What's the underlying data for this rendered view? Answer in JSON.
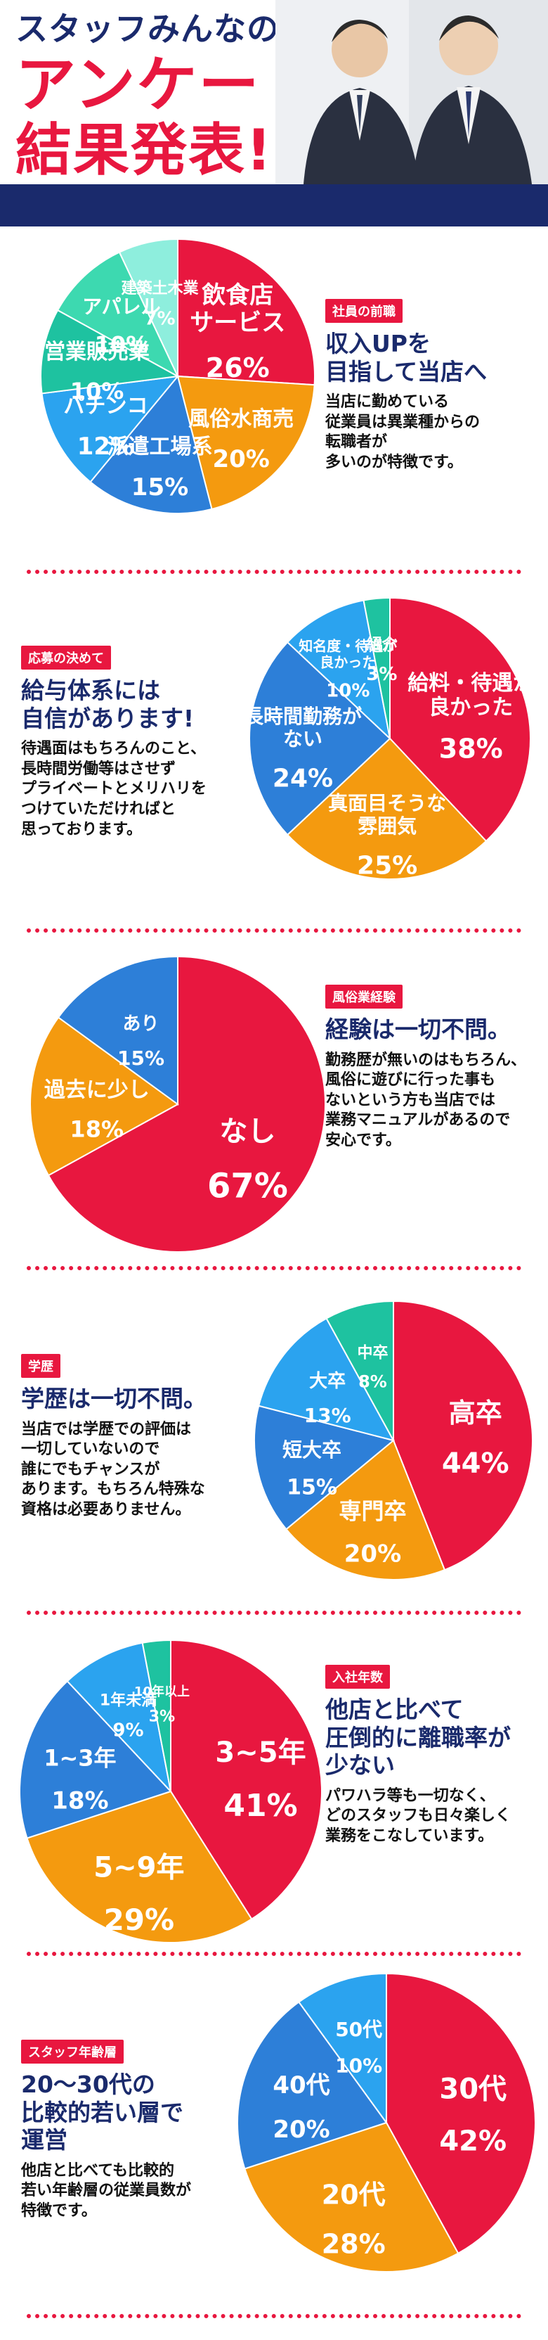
{
  "hero": {
    "line1": "スタッフみんなの",
    "line2": "アンケート",
    "line3": "結果発表!!"
  },
  "sections": [
    {
      "tag": "社員の前職",
      "headline": [
        "収入UPを",
        "目指して当店へ"
      ],
      "body": [
        "当店に勤めている",
        "従業員は異業種からの",
        "転職者が",
        "多いのが特徴です。"
      ]
    },
    {
      "tag": "応募の決めて",
      "headline": [
        "給与体系には",
        "自信があります!"
      ],
      "body": [
        "待遇面はもちろんのこと、",
        "長時間労働等はさせず",
        "プライベートとメリハリを",
        "つけていただければと",
        "思っております。"
      ]
    },
    {
      "tag": "風俗業経験",
      "headline": [
        "経験は一切不問。"
      ],
      "body": [
        "勤務歴が無いのはもちろん、",
        "風俗に遊びに行った事も",
        "ないという方も当店では",
        "業務マニュアルがあるので",
        "安心です。"
      ]
    },
    {
      "tag": "学歴",
      "headline": [
        "学歴は一切不問。"
      ],
      "body": [
        "当店では学歴での評価は",
        "一切していないので",
        "誰にでもチャンスが",
        "あります。もちろん特殊な",
        "資格は必要ありません。"
      ]
    },
    {
      "tag": "入社年数",
      "headline": [
        "他店と比べて",
        "圧倒的に離職率が",
        "少ない"
      ],
      "body": [
        "パワハラ等も一切なく、",
        "どのスタッフも日々楽しく",
        "業務をこなしています。"
      ]
    },
    {
      "tag": "スタッフ年齢層",
      "headline": [
        "20〜30代の",
        "比較的若い層で",
        "運営"
      ],
      "body": [
        "他店と比べても比較的",
        "若い年齢層の従業員数が",
        "特徴です。"
      ]
    }
  ],
  "chart_data": [
    {
      "type": "pie",
      "slices": [
        {
          "label": "飲食店サービス",
          "lines": [
            "飲食店",
            "サービス"
          ],
          "pct": "26%",
          "value": 26,
          "color": "#e8173f"
        },
        {
          "label": "風俗水商売",
          "lines": [
            "風俗水商売"
          ],
          "pct": "20%",
          "value": 20,
          "color": "#f49a0f"
        },
        {
          "label": "派遣工場系",
          "lines": [
            "派遣工場系"
          ],
          "pct": "15%",
          "value": 15,
          "color": "#2d7fd8"
        },
        {
          "label": "パチンコ",
          "lines": [
            "パチンコ"
          ],
          "pct": "12%",
          "value": 12,
          "color": "#2ba3ef"
        },
        {
          "label": "営業販売業",
          "lines": [
            "営業販売業"
          ],
          "pct": "10%",
          "value": 10,
          "color": "#1ec2a0"
        },
        {
          "label": "アパレル",
          "lines": [
            "アパレル"
          ],
          "pct": "10%",
          "value": 10,
          "color": "#3dd9b0"
        },
        {
          "label": "建築土木業",
          "lines": [
            "建築土木業"
          ],
          "pct": "7%",
          "value": 7,
          "color": "#8eeedd"
        }
      ]
    },
    {
      "type": "pie",
      "slices": [
        {
          "label": "給料・待遇が良かった",
          "lines": [
            "給料・待遇が",
            "良かった"
          ],
          "pct": "38%",
          "value": 38,
          "color": "#e8173f"
        },
        {
          "label": "真面目そうな雰囲気",
          "lines": [
            "真面目そうな",
            "雰囲気"
          ],
          "pct": "25%",
          "value": 25,
          "color": "#f49a0f"
        },
        {
          "label": "長時間勤務がない",
          "lines": [
            "長時間勤務が",
            "ない"
          ],
          "pct": "24%",
          "value": 24,
          "color": "#2d7fd8"
        },
        {
          "label": "知名度・待遇が良かった",
          "lines": [
            "知名度・待遇が",
            "良かった"
          ],
          "pct": "10%",
          "value": 10,
          "color": "#2ba3ef"
        },
        {
          "label": "紹介",
          "lines": [
            "紹介"
          ],
          "pct": "3%",
          "value": 3,
          "color": "#1ec2a0"
        }
      ]
    },
    {
      "type": "pie",
      "slices": [
        {
          "label": "なし",
          "lines": [
            "なし"
          ],
          "pct": "67%",
          "value": 67,
          "color": "#e8173f"
        },
        {
          "label": "過去に少し",
          "lines": [
            "過去に少し"
          ],
          "pct": "18%",
          "value": 18,
          "color": "#f49a0f"
        },
        {
          "label": "あり",
          "lines": [
            "あり"
          ],
          "pct": "15%",
          "value": 15,
          "color": "#2d7fd8"
        }
      ]
    },
    {
      "type": "pie",
      "slices": [
        {
          "label": "高卒",
          "lines": [
            "高卒"
          ],
          "pct": "44%",
          "value": 44,
          "color": "#e8173f"
        },
        {
          "label": "専門卒",
          "lines": [
            "専門卒"
          ],
          "pct": "20%",
          "value": 20,
          "color": "#f49a0f"
        },
        {
          "label": "短大卒",
          "lines": [
            "短大卒"
          ],
          "pct": "15%",
          "value": 15,
          "color": "#2d7fd8"
        },
        {
          "label": "大卒",
          "lines": [
            "大卒"
          ],
          "pct": "13%",
          "value": 13,
          "color": "#2ba3ef"
        },
        {
          "label": "中卒",
          "lines": [
            "中卒"
          ],
          "pct": "8%",
          "value": 8,
          "color": "#1ec2a0"
        }
      ]
    },
    {
      "type": "pie",
      "slices": [
        {
          "label": "3~5年",
          "lines": [
            "3~5年"
          ],
          "pct": "41%",
          "value": 41,
          "color": "#e8173f"
        },
        {
          "label": "5~9年",
          "lines": [
            "5~9年"
          ],
          "pct": "29%",
          "value": 29,
          "color": "#f49a0f"
        },
        {
          "label": "1~3年",
          "lines": [
            "1~3年"
          ],
          "pct": "18%",
          "value": 18,
          "color": "#2d7fd8"
        },
        {
          "label": "1年未満",
          "lines": [
            "1年未満"
          ],
          "pct": "9%",
          "value": 9,
          "color": "#2ba3ef"
        },
        {
          "label": "10年以上",
          "lines": [
            "10年以上"
          ],
          "pct": "3%",
          "value": 3,
          "color": "#1ec2a0"
        }
      ]
    },
    {
      "type": "pie",
      "slices": [
        {
          "label": "30代",
          "lines": [
            "30代"
          ],
          "pct": "42%",
          "value": 42,
          "color": "#e8173f"
        },
        {
          "label": "20代",
          "lines": [
            "20代"
          ],
          "pct": "28%",
          "value": 28,
          "color": "#f49a0f"
        },
        {
          "label": "40代",
          "lines": [
            "40代"
          ],
          "pct": "20%",
          "value": 20,
          "color": "#2d7fd8"
        },
        {
          "label": "50代",
          "lines": [
            "50代"
          ],
          "pct": "10%",
          "value": 10,
          "color": "#2ba3ef"
        }
      ]
    }
  ]
}
